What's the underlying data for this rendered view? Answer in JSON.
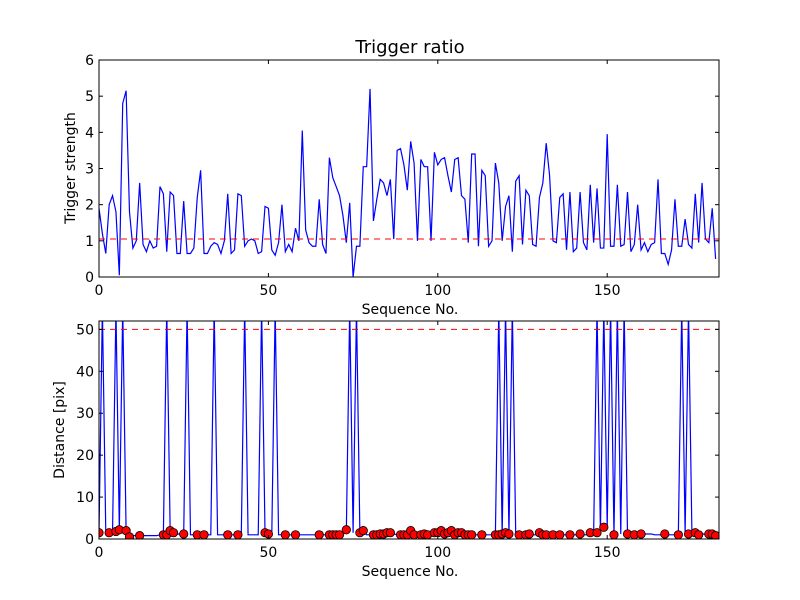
{
  "chart_data": [
    {
      "type": "line",
      "title": "Trigger ratio",
      "xlabel": "Sequence No.",
      "ylabel": "Trigger strength",
      "xlim": [
        0,
        183
      ],
      "ylim": [
        0,
        6
      ],
      "xticks": [
        0,
        50,
        100,
        150
      ],
      "yticks": [
        0,
        1,
        2,
        3,
        4,
        5,
        6
      ],
      "threshold": 1.05,
      "colors": {
        "line": "#0000ff",
        "threshold": "#ff0000"
      },
      "x_start": 0,
      "values": [
        1.9,
        1.2,
        0.65,
        2.0,
        2.25,
        1.8,
        0.05,
        4.8,
        5.15,
        1.8,
        0.8,
        1.0,
        2.6,
        0.9,
        0.7,
        1.0,
        0.8,
        0.85,
        2.5,
        2.3,
        0.7,
        2.35,
        2.25,
        0.65,
        0.65,
        2.1,
        0.65,
        0.65,
        0.8,
        2.2,
        2.95,
        0.65,
        0.65,
        0.85,
        0.95,
        0.9,
        0.65,
        1.0,
        2.3,
        0.65,
        0.75,
        2.3,
        2.25,
        0.85,
        1.0,
        1.05,
        1.0,
        0.65,
        0.7,
        1.95,
        1.9,
        0.75,
        0.6,
        0.95,
        2.0,
        0.7,
        0.9,
        0.7,
        1.35,
        1.0,
        4.05,
        1.3,
        0.95,
        0.85,
        0.85,
        2.15,
        0.9,
        0.65,
        3.3,
        2.75,
        2.5,
        2.25,
        1.7,
        0.95,
        2.05,
        0.0,
        0.85,
        0.85,
        3.05,
        3.05,
        5.2,
        1.55,
        2.15,
        2.7,
        2.6,
        2.25,
        2.7,
        1.05,
        3.5,
        3.55,
        3.1,
        2.4,
        3.75,
        3.15,
        1.0,
        3.25,
        3.05,
        3.05,
        1.0,
        3.45,
        3.1,
        3.25,
        3.3,
        2.8,
        2.35,
        3.25,
        3.3,
        2.25,
        2.15,
        0.95,
        3.4,
        3.4,
        0.85,
        2.95,
        2.8,
        0.85,
        1.0,
        3.15,
        2.6,
        1.0,
        1.95,
        2.25,
        0.7,
        2.65,
        2.8,
        0.9,
        2.4,
        2.25,
        0.9,
        0.85,
        2.2,
        2.6,
        3.7,
        2.8,
        1.0,
        0.95,
        2.2,
        2.3,
        0.75,
        2.35,
        0.7,
        0.8,
        2.35,
        0.95,
        0.75,
        2.55,
        0.95,
        2.45,
        0.8,
        0.8,
        3.95,
        0.85,
        0.85,
        2.55,
        0.85,
        0.9,
        2.35,
        0.7,
        0.9,
        2.0,
        0.75,
        0.95,
        0.7,
        0.9,
        0.95,
        2.7,
        0.65,
        0.65,
        0.35,
        0.75,
        2.15,
        0.85,
        0.85,
        1.6,
        0.9,
        0.8,
        2.3,
        0.95,
        2.6,
        1.05,
        0.95,
        1.9,
        0.5
      ]
    },
    {
      "type": "line",
      "xlabel": "Sequence No.",
      "ylabel": "Distance [pix]",
      "xlim": [
        0,
        183
      ],
      "ylim": [
        0,
        52
      ],
      "xticks": [
        0,
        50,
        100,
        150
      ],
      "yticks": [
        0,
        10,
        20,
        30,
        40,
        50
      ],
      "threshold": 50,
      "colors": {
        "line": "#0000ff",
        "threshold": "#ff0000",
        "marker": "#ff0000"
      },
      "line_values": [
        1.5,
        55,
        1.5,
        1.5,
        1.8,
        55,
        2.0,
        55,
        1.8,
        0.5,
        0.8,
        0.8,
        0.8,
        0.8,
        0.8,
        0.8,
        0.8,
        0.8,
        1.0,
        1.0,
        55,
        2.0,
        1.5,
        1.2,
        1.2,
        1.2,
        55,
        1.0,
        1.0,
        1.0,
        1.0,
        1.0,
        1.0,
        1.0,
        55,
        1.0,
        1.0,
        1.0,
        1.0,
        1.0,
        1.0,
        1.0,
        1.0,
        55,
        1.0,
        1.0,
        1.0,
        1.0,
        55,
        1.5,
        1.2,
        1.0,
        55,
        1.0,
        1.0,
        1.0,
        1.0,
        1.0,
        1.0,
        1.0,
        1.0,
        1.0,
        1.0,
        1.0,
        1.0,
        1.0,
        1.0,
        1.0,
        1.0,
        1.0,
        1.0,
        1.0,
        1.2,
        1.5,
        55,
        1.5,
        55,
        1.5,
        2.0,
        1.0,
        1.0,
        1.0,
        1.0,
        1.0,
        1.2,
        1.2,
        1.2,
        1.2,
        1.0,
        1.0,
        1.0,
        1.0,
        1.5,
        2.0,
        1.0,
        1.0,
        1.0,
        1.0,
        1.0,
        1.5,
        1.5,
        1.2,
        1.5,
        1.8,
        1.5,
        1.0,
        1.5,
        1.5,
        1.0,
        1.0,
        1.0,
        1.0,
        1.0,
        1.0,
        1.0,
        1.0,
        1.0,
        1.0,
        55,
        1.0,
        55,
        1.2,
        55,
        1.0,
        1.0,
        1.2,
        1.2,
        1.0,
        1.0,
        1.0,
        1.2,
        1.0,
        1.0,
        1.0,
        1.0,
        1.0,
        1.0,
        1.0,
        1.0,
        1.0,
        1.0,
        1.0,
        1.0,
        1.0,
        1.0,
        1.2,
        1.2,
        55,
        1.5,
        55,
        2.8,
        55,
        1.0,
        55,
        1.2,
        55,
        1.0,
        1.0,
        1.0,
        1.0,
        1.2,
        1.2,
        1.2,
        1.2,
        1.0,
        1.0,
        1.0,
        1.0,
        1.0,
        1.0,
        1.0,
        1.0,
        55,
        1.2,
        55,
        1.5,
        1.0,
        1.0,
        1.2,
        1.2,
        0.8
      ],
      "markers": [
        [
          0,
          1.5
        ],
        [
          3,
          1.5
        ],
        [
          5,
          1.8
        ],
        [
          6,
          2.2
        ],
        [
          8,
          2.0
        ],
        [
          9,
          0.5
        ],
        [
          12,
          0.8
        ],
        [
          19,
          1.0
        ],
        [
          20,
          1.0
        ],
        [
          21,
          2.0
        ],
        [
          22,
          1.5
        ],
        [
          25,
          1.2
        ],
        [
          29,
          1.0
        ],
        [
          31,
          1.0
        ],
        [
          38,
          1.0
        ],
        [
          41,
          1.0
        ],
        [
          49,
          1.5
        ],
        [
          50,
          1.2
        ],
        [
          55,
          1.0
        ],
        [
          58,
          1.0
        ],
        [
          65,
          1.0
        ],
        [
          68,
          1.0
        ],
        [
          69,
          1.0
        ],
        [
          70,
          1.0
        ],
        [
          71,
          1.0
        ],
        [
          73,
          2.2
        ],
        [
          77,
          1.5
        ],
        [
          78,
          2.0
        ],
        [
          81,
          1.0
        ],
        [
          82,
          1.0
        ],
        [
          83,
          1.2
        ],
        [
          84,
          1.2
        ],
        [
          85,
          1.5
        ],
        [
          86,
          1.5
        ],
        [
          89,
          1.0
        ],
        [
          90,
          1.0
        ],
        [
          91,
          1.0
        ],
        [
          92,
          2.0
        ],
        [
          93,
          1.0
        ],
        [
          95,
          1.0
        ],
        [
          96,
          1.2
        ],
        [
          97,
          1.0
        ],
        [
          99,
          1.5
        ],
        [
          100,
          1.5
        ],
        [
          101,
          2.0
        ],
        [
          102,
          1.2
        ],
        [
          103,
          1.5
        ],
        [
          104,
          2.0
        ],
        [
          105,
          1.0
        ],
        [
          106,
          1.5
        ],
        [
          107,
          1.5
        ],
        [
          108,
          1.0
        ],
        [
          109,
          1.0
        ],
        [
          110,
          1.0
        ],
        [
          113,
          1.0
        ],
        [
          117,
          1.0
        ],
        [
          118,
          1.0
        ],
        [
          119,
          1.2
        ],
        [
          120,
          1.5
        ],
        [
          121,
          1.2
        ],
        [
          124,
          1.0
        ],
        [
          126,
          1.0
        ],
        [
          127,
          1.2
        ],
        [
          130,
          1.5
        ],
        [
          131,
          1.0
        ],
        [
          132,
          1.0
        ],
        [
          134,
          1.0
        ],
        [
          136,
          1.0
        ],
        [
          139,
          1.0
        ],
        [
          142,
          1.2
        ],
        [
          145,
          1.5
        ],
        [
          147,
          1.5
        ],
        [
          149,
          2.8
        ],
        [
          152,
          1.0
        ],
        [
          156,
          1.2
        ],
        [
          158,
          1.0
        ],
        [
          160,
          1.2
        ],
        [
          167,
          1.2
        ],
        [
          171,
          1.0
        ],
        [
          174,
          1.2
        ],
        [
          176,
          1.5
        ],
        [
          177,
          1.0
        ],
        [
          180,
          1.2
        ],
        [
          181,
          1.2
        ],
        [
          182,
          0.8
        ]
      ]
    }
  ]
}
